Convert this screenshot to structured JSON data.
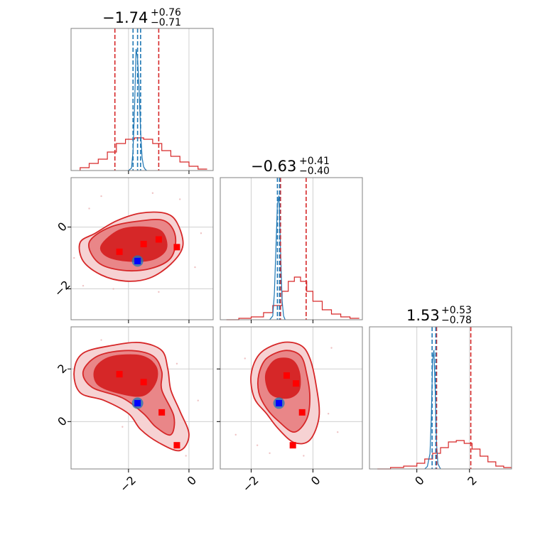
{
  "colors": {
    "red": "#d62728",
    "red_mid": "#e98688",
    "red_light": "#f6d2d3",
    "blue": "#1f77b4",
    "marker_red": "#ff0000",
    "marker_blue": "#0000ff",
    "grid": "#d0d0d0",
    "frame": "#808080"
  },
  "titles": [
    {
      "main": "−1.74",
      "sup": "+0.76",
      "sub": "−0.71"
    },
    {
      "main": "−0.63",
      "sup": "+0.41",
      "sub": "−0.40"
    },
    {
      "main": "1.53",
      "sup": "+0.53",
      "sub": "−0.78"
    }
  ],
  "chart_data": {
    "type": "corner",
    "parameters": 3,
    "title": "",
    "axes": {
      "p0": {
        "range": [
          -3.9,
          0.8
        ],
        "ticks": [
          -2,
          0
        ],
        "tick_labels": [
          "−2",
          "0"
        ]
      },
      "p1": {
        "range": [
          -3.0,
          1.6
        ],
        "ticks": [
          -2,
          0
        ],
        "tick_labels": [
          "−2",
          "0"
        ]
      },
      "p2": {
        "range": [
          -1.8,
          3.6
        ],
        "ticks": [
          0,
          2
        ],
        "tick_labels": [
          "0",
          "2"
        ]
      }
    },
    "marginals": [
      {
        "param": "p0",
        "summary": {
          "median": -1.74,
          "plus": 0.76,
          "minus": 0.71
        },
        "red_quantile_lines": [
          -2.45,
          -1.0
        ],
        "blue_quantile_lines": [
          -1.85,
          -1.7,
          -1.6
        ],
        "red_hist": {
          "x": [
            -3.6,
            -3.3,
            -3.0,
            -2.7,
            -2.4,
            -2.1,
            -1.8,
            -1.5,
            -1.2,
            -0.9,
            -0.6,
            -0.3,
            0.0,
            0.3
          ],
          "y": [
            0.02,
            0.05,
            0.08,
            0.13,
            0.19,
            0.22,
            0.23,
            0.22,
            0.19,
            0.14,
            0.1,
            0.06,
            0.03,
            0.01
          ]
        },
        "blue_hist": {
          "x": [
            -2.0,
            -1.9,
            -1.85,
            -1.8,
            -1.75,
            -1.7,
            -1.65,
            -1.6,
            -1.55,
            -1.5,
            -1.45,
            -1.4
          ],
          "y": [
            0.0,
            0.02,
            0.15,
            0.5,
            0.95,
            0.88,
            0.65,
            0.3,
            0.1,
            0.03,
            0.01,
            0.0
          ]
        }
      },
      {
        "param": "p1",
        "summary": {
          "median": -0.63,
          "plus": 0.41,
          "minus": 0.4
        },
        "red_quantile_lines": [
          -1.05,
          -0.22
        ],
        "blue_quantile_lines": [
          -1.15,
          -1.08
        ],
        "red_hist": {
          "x": [
            -2.8,
            -2.4,
            -2.0,
            -1.6,
            -1.3,
            -1.0,
            -0.8,
            -0.6,
            -0.4,
            -0.2,
            0.0,
            0.3,
            0.6,
            0.9,
            1.2
          ],
          "y": [
            0.0,
            0.01,
            0.02,
            0.05,
            0.1,
            0.2,
            0.27,
            0.3,
            0.27,
            0.2,
            0.13,
            0.07,
            0.04,
            0.02,
            0.01
          ]
        },
        "blue_hist": {
          "x": [
            -1.4,
            -1.3,
            -1.25,
            -1.2,
            -1.15,
            -1.1,
            -1.05,
            -1.0,
            -0.95,
            -0.9
          ],
          "y": [
            0.0,
            0.03,
            0.2,
            0.55,
            0.9,
            0.97,
            0.55,
            0.15,
            0.03,
            0.0
          ]
        }
      },
      {
        "param": "p2",
        "summary": {
          "median": 1.53,
          "plus": 0.53,
          "minus": 0.78
        },
        "red_quantile_lines": [
          0.75,
          2.05
        ],
        "blue_quantile_lines": [
          0.58,
          0.72
        ],
        "red_hist": {
          "x": [
            -1.5,
            -1.0,
            -0.5,
            0.0,
            0.3,
            0.6,
            0.9,
            1.2,
            1.5,
            1.8,
            2.1,
            2.4,
            2.7,
            3.0,
            3.3
          ],
          "y": [
            0.0,
            0.01,
            0.02,
            0.04,
            0.07,
            0.11,
            0.15,
            0.19,
            0.2,
            0.18,
            0.14,
            0.09,
            0.05,
            0.02,
            0.01
          ]
        },
        "blue_hist": {
          "x": [
            0.3,
            0.4,
            0.5,
            0.55,
            0.6,
            0.65,
            0.7,
            0.75,
            0.8,
            0.9
          ],
          "y": [
            0.0,
            0.02,
            0.12,
            0.4,
            0.85,
            0.93,
            0.6,
            0.2,
            0.04,
            0.0
          ]
        }
      }
    ],
    "joint_panels": [
      {
        "x_param": "p0",
        "y_param": "p1",
        "contours": [
          {
            "level": "outer",
            "points": [
              [
                -3.6,
                -0.5
              ],
              [
                -3.1,
                -0.2
              ],
              [
                -2.4,
                0.2
              ],
              [
                -1.6,
                0.45
              ],
              [
                -0.8,
                0.45
              ],
              [
                -0.4,
                0.15
              ],
              [
                -0.2,
                -0.6
              ],
              [
                -0.6,
                -1.2
              ],
              [
                -1.3,
                -1.65
              ],
              [
                -2.1,
                -1.75
              ],
              [
                -2.9,
                -1.55
              ],
              [
                -3.5,
                -1.1
              ]
            ]
          },
          {
            "level": "middle",
            "points": [
              [
                -3.3,
                -0.5
              ],
              [
                -2.6,
                0.0
              ],
              [
                -1.6,
                0.2
              ],
              [
                -0.8,
                0.2
              ],
              [
                -0.45,
                -0.3
              ],
              [
                -0.6,
                -1.0
              ],
              [
                -1.3,
                -1.35
              ],
              [
                -2.2,
                -1.4
              ],
              [
                -3.0,
                -1.15
              ]
            ]
          },
          {
            "level": "inner",
            "points": [
              [
                -2.9,
                -0.6
              ],
              [
                -2.3,
                -0.1
              ],
              [
                -1.5,
                0.0
              ],
              [
                -0.9,
                -0.15
              ],
              [
                -0.75,
                -0.7
              ],
              [
                -1.2,
                -1.05
              ],
              [
                -2.0,
                -1.1
              ],
              [
                -2.7,
                -0.95
              ]
            ]
          }
        ],
        "red_markers": [
          [
            -2.3,
            -0.8
          ],
          [
            -1.5,
            -0.55
          ],
          [
            -1.0,
            -0.4
          ],
          [
            -0.4,
            -0.65
          ]
        ],
        "blue_marker": [
          -1.7,
          -1.1
        ],
        "scatter": [
          [
            -3.3,
            0.6
          ],
          [
            -2.9,
            1.0
          ],
          [
            -1.2,
            1.1
          ],
          [
            -0.3,
            0.9
          ],
          [
            0.2,
            -1.3
          ],
          [
            -3.5,
            -1.9
          ],
          [
            -1.0,
            -2.1
          ],
          [
            -2.5,
            -2.0
          ],
          [
            0.4,
            -0.2
          ],
          [
            -3.8,
            -1.0
          ]
        ]
      },
      {
        "x_param": "p0",
        "y_param": "p2",
        "contours": [
          {
            "level": "outer",
            "points": [
              [
                -3.8,
                1.9
              ],
              [
                -3.5,
                2.6
              ],
              [
                -2.5,
                2.9
              ],
              [
                -1.6,
                3.0
              ],
              [
                -0.9,
                2.7
              ],
              [
                -0.7,
                2.0
              ],
              [
                -0.6,
                1.2
              ],
              [
                -0.3,
                0.4
              ],
              [
                0.0,
                -0.5
              ],
              [
                -0.3,
                -1.1
              ],
              [
                -1.0,
                -0.8
              ],
              [
                -1.6,
                -0.3
              ],
              [
                -2.0,
                0.3
              ],
              [
                -2.8,
                0.8
              ],
              [
                -3.6,
                1.1
              ]
            ]
          },
          {
            "level": "middle",
            "points": [
              [
                -3.5,
                1.9
              ],
              [
                -3.0,
                2.5
              ],
              [
                -2.0,
                2.7
              ],
              [
                -1.2,
                2.5
              ],
              [
                -0.9,
                1.9
              ],
              [
                -0.9,
                1.2
              ],
              [
                -0.5,
                0.2
              ],
              [
                -0.6,
                -0.5
              ],
              [
                -1.1,
                -0.2
              ],
              [
                -1.5,
                0.3
              ],
              [
                -2.2,
                0.9
              ],
              [
                -3.2,
                1.3
              ]
            ]
          },
          {
            "level": "inner",
            "points": [
              [
                -3.1,
                2.0
              ],
              [
                -2.6,
                2.45
              ],
              [
                -1.6,
                2.5
              ],
              [
                -1.1,
                2.1
              ],
              [
                -1.1,
                1.5
              ],
              [
                -1.5,
                1.0
              ],
              [
                -2.2,
                1.05
              ],
              [
                -3.0,
                1.4
              ]
            ]
          }
        ],
        "red_markers": [
          [
            -2.3,
            1.8
          ],
          [
            -1.5,
            1.5
          ],
          [
            -0.9,
            0.35
          ],
          [
            -0.4,
            -0.9
          ]
        ],
        "blue_marker": [
          -1.7,
          0.7
        ],
        "scatter": [
          [
            -3.8,
            1.8
          ],
          [
            -1.5,
            0.0
          ],
          [
            -1.3,
            0.4
          ],
          [
            -2.9,
            3.1
          ],
          [
            -0.4,
            2.2
          ],
          [
            0.3,
            0.8
          ],
          [
            -2.2,
            -0.2
          ],
          [
            -0.1,
            -1.3
          ]
        ]
      },
      {
        "x_param": "p1",
        "y_param": "p2",
        "contours": [
          {
            "level": "outer",
            "points": [
              [
                -2.0,
                1.8
              ],
              [
                -1.7,
                2.6
              ],
              [
                -1.0,
                3.0
              ],
              [
                -0.4,
                2.9
              ],
              [
                -0.1,
                2.4
              ],
              [
                0.1,
                1.4
              ],
              [
                0.2,
                0.2
              ],
              [
                -0.1,
                -0.7
              ],
              [
                -0.6,
                -0.8
              ],
              [
                -1.1,
                -0.3
              ],
              [
                -1.5,
                0.3
              ],
              [
                -1.9,
                0.9
              ]
            ]
          },
          {
            "level": "middle",
            "points": [
              [
                -1.75,
                1.8
              ],
              [
                -1.5,
                2.4
              ],
              [
                -0.9,
                2.7
              ],
              [
                -0.4,
                2.5
              ],
              [
                -0.2,
                1.8
              ],
              [
                -0.1,
                0.9
              ],
              [
                -0.2,
                0.1
              ],
              [
                -0.6,
                -0.4
              ],
              [
                -1.1,
                0.0
              ],
              [
                -1.5,
                0.5
              ],
              [
                -1.75,
                1.1
              ]
            ]
          },
          {
            "level": "inner",
            "points": [
              [
                -1.5,
                1.9
              ],
              [
                -1.2,
                2.35
              ],
              [
                -0.7,
                2.35
              ],
              [
                -0.45,
                1.9
              ],
              [
                -0.45,
                1.2
              ],
              [
                -0.8,
                0.9
              ],
              [
                -1.3,
                1.0
              ],
              [
                -1.5,
                1.4
              ]
            ]
          }
        ],
        "red_markers": [
          [
            -0.85,
            1.75
          ],
          [
            -0.55,
            1.45
          ],
          [
            -0.35,
            0.35
          ],
          [
            -0.65,
            -0.9
          ]
        ],
        "blue_marker": [
          -1.1,
          0.7
        ],
        "scatter": [
          [
            -2.5,
            -0.5
          ],
          [
            -1.8,
            -0.9
          ],
          [
            0.5,
            0.3
          ],
          [
            0.8,
            -0.4
          ],
          [
            -0.3,
            -1.3
          ],
          [
            -2.2,
            2.4
          ],
          [
            0.6,
            2.8
          ],
          [
            -1.4,
            -1.2
          ]
        ]
      }
    ]
  }
}
